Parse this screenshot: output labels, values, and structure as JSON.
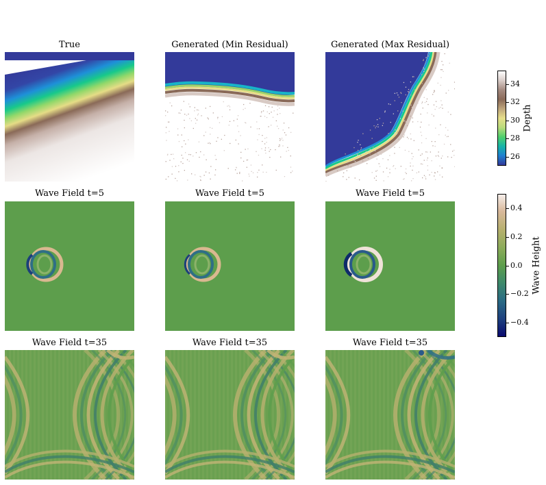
{
  "rows": [
    {
      "panels": [
        {
          "title": "True",
          "kind": "depth-true"
        },
        {
          "title": "Generated (Min Residual)",
          "kind": "depth-min"
        },
        {
          "title": "Generated (Max Residual)",
          "kind": "depth-max"
        }
      ]
    },
    {
      "panels": [
        {
          "title": "Wave Field t=5",
          "kind": "wave5-a"
        },
        {
          "title": "Wave Field t=5",
          "kind": "wave5-b"
        },
        {
          "title": "Wave Field t=5",
          "kind": "wave5-c"
        }
      ]
    },
    {
      "panels": [
        {
          "title": "Wave Field t=35",
          "kind": "wave35-a"
        },
        {
          "title": "Wave Field t=35",
          "kind": "wave35-b"
        },
        {
          "title": "Wave Field t=35",
          "kind": "wave35-c"
        }
      ]
    }
  ],
  "colorbars": [
    {
      "label": "Depth",
      "ticks": [
        "34",
        "32",
        "30",
        "28",
        "26"
      ],
      "tick_values": [
        34,
        32,
        30,
        28,
        26
      ],
      "range": [
        25,
        35.5
      ],
      "colormap": "terrain"
    },
    {
      "label": "Wave Height",
      "ticks": [
        "0.4",
        "0.2",
        "0.0",
        "−0.2",
        "−0.4"
      ],
      "tick_values": [
        0.4,
        0.2,
        0.0,
        -0.2,
        -0.4
      ],
      "range": [
        -0.5,
        0.5
      ],
      "colormap": "gist_earth"
    }
  ],
  "chart_data": {
    "type": "heatmap",
    "description_grid": "3x3 image panels",
    "depth_range": [
      25,
      35.5
    ],
    "wave_range": [
      -0.5,
      0.5
    ]
  }
}
